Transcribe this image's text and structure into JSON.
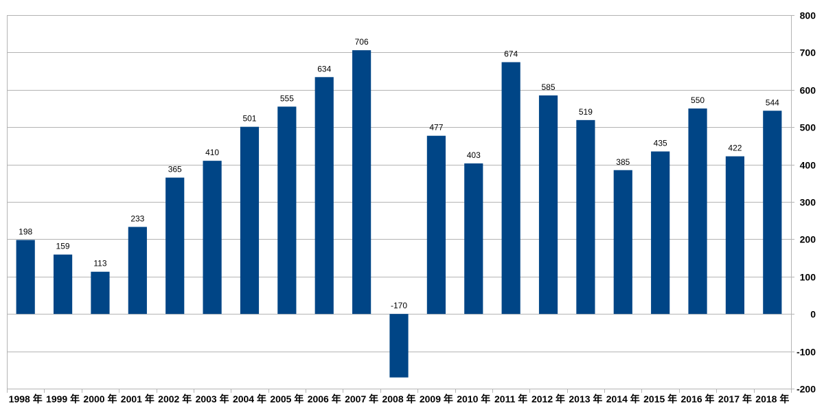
{
  "chart_data": {
    "type": "bar",
    "title": "",
    "xlabel": "",
    "ylabel": "",
    "categories": [
      "1998 年",
      "1999 年",
      "2000 年",
      "2001 年",
      "2002 年",
      "2003 年",
      "2004 年",
      "2005 年",
      "2006 年",
      "2007 年",
      "2008 年",
      "2009 年",
      "2010 年",
      "2011 年",
      "2012 年",
      "2013 年",
      "2014 年",
      "2015 年",
      "2016 年",
      "2017 年",
      "2018 年"
    ],
    "values": [
      198,
      159,
      113,
      233,
      365,
      410,
      501,
      555,
      634,
      706,
      -170,
      477,
      403,
      674,
      585,
      519,
      385,
      435,
      550,
      422,
      544
    ],
    "data_labels": [
      "198",
      "159",
      "113",
      "233",
      "365",
      "410",
      "501",
      "555",
      "634",
      "706",
      "-170",
      "477",
      "403",
      "674",
      "585",
      "519",
      "385",
      "435",
      "550",
      "422",
      "544"
    ],
    "ylim": [
      -200,
      800
    ],
    "y_ticks": [
      -200,
      -100,
      0,
      100,
      200,
      300,
      400,
      500,
      600,
      700,
      800
    ],
    "y_tick_labels": [
      "-200",
      "-100",
      "0",
      "100",
      "200",
      "300",
      "400",
      "500",
      "600",
      "700",
      "800"
    ],
    "y_axis_side": "right",
    "grid": true,
    "legend": "none",
    "bar_color": "#004586",
    "grid_color": "#b3b3b3"
  }
}
